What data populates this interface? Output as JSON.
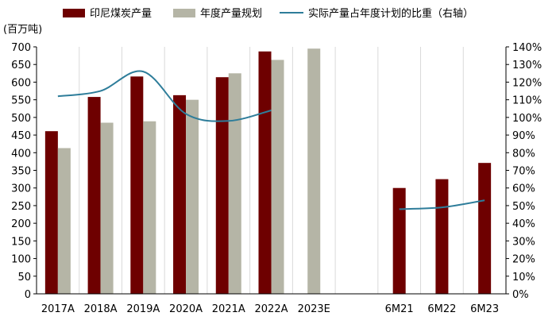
{
  "chart_data": {
    "type": "bar",
    "categories": [
      "2017A",
      "2018A",
      "2019A",
      "2020A",
      "2021A",
      "2022A",
      "2023E",
      "",
      "6M21",
      "6M22",
      "6M23"
    ],
    "series": [
      {
        "name": "印尼煤炭产量",
        "type": "bar",
        "axis": "left",
        "color": "#6e0000",
        "values": [
          461,
          558,
          616,
          563,
          614,
          687,
          null,
          null,
          300,
          325,
          371
        ]
      },
      {
        "name": "年度产量规划",
        "type": "bar",
        "axis": "left",
        "color": "#b5b5a6",
        "values": [
          413,
          485,
          489,
          550,
          625,
          663,
          695,
          null,
          null,
          null,
          null
        ]
      },
      {
        "name": "实际产量占年度计划的比重（右轴）",
        "type": "line",
        "axis": "right",
        "color": "#2e7d9a",
        "values": [
          112,
          115,
          126,
          102,
          98,
          104,
          null,
          null,
          48,
          49,
          53
        ]
      }
    ],
    "ylabel": "(百万吨)",
    "ylim": [
      0,
      700
    ],
    "yticks": [
      "0",
      "50",
      "100",
      "150",
      "200",
      "250",
      "300",
      "350",
      "400",
      "450",
      "500",
      "550",
      "600",
      "650",
      "700"
    ],
    "y2lim": [
      0,
      140
    ],
    "y2ticks": [
      "0%",
      "10%",
      "20%",
      "30%",
      "40%",
      "50%",
      "60%",
      "70%",
      "80%",
      "90%",
      "100%",
      "110%",
      "120%",
      "130%",
      "140%"
    ],
    "grid": "vertical",
    "legend": "top"
  }
}
